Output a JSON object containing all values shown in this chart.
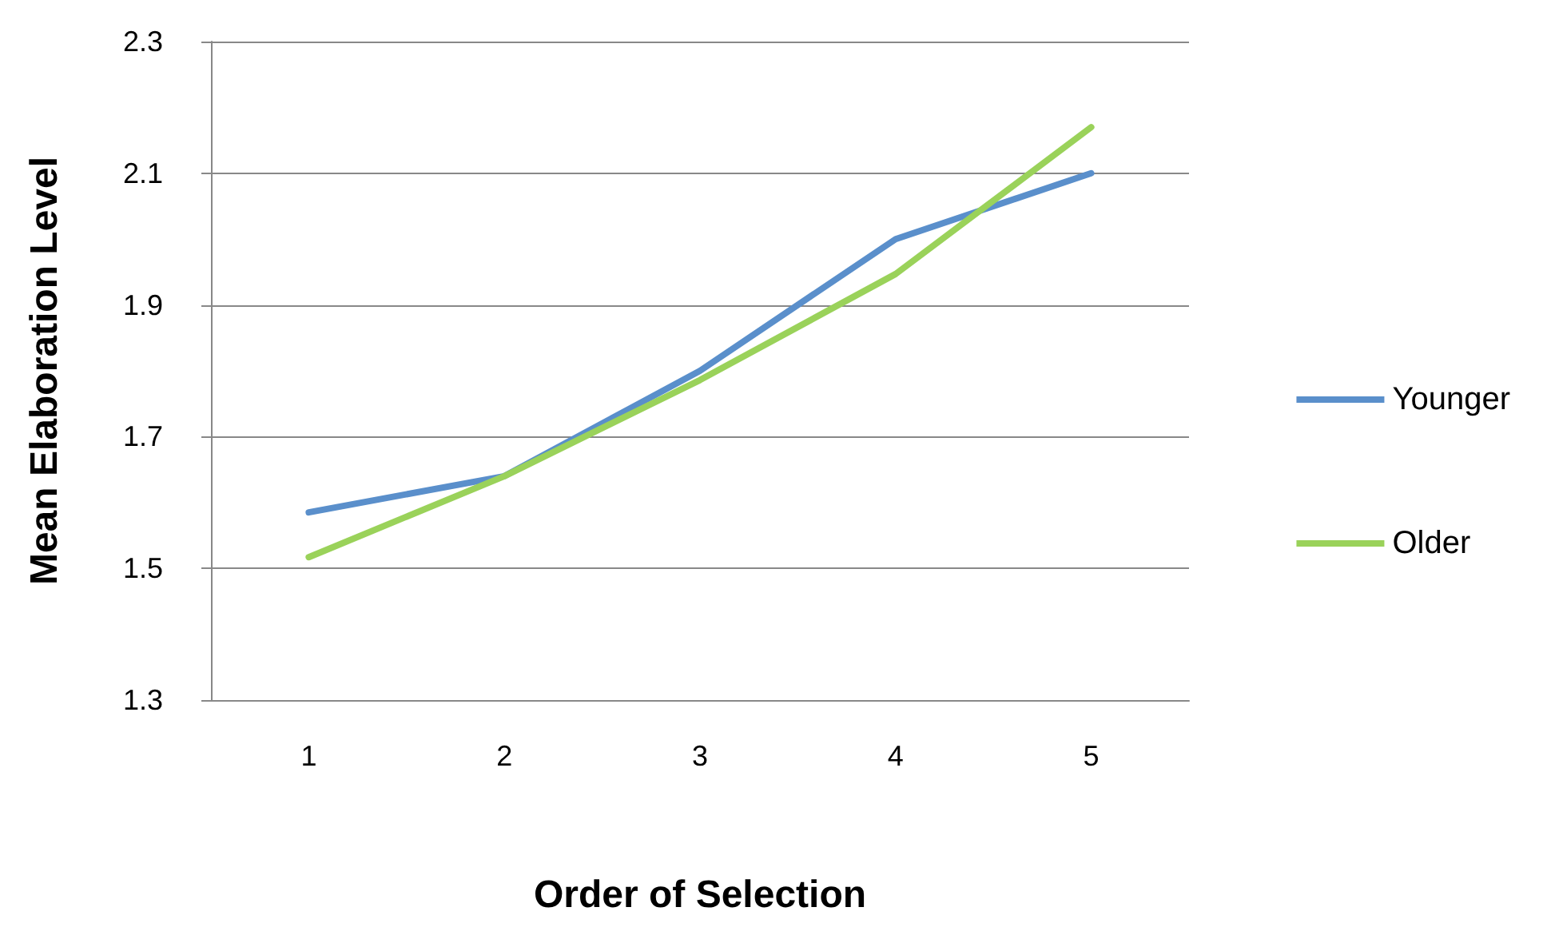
{
  "chart_data": {
    "type": "line",
    "xlabel": "Order of Selection",
    "ylabel": "Mean Elaboration Level",
    "categories": [
      "1",
      "2",
      "3",
      "4",
      "5"
    ],
    "series": [
      {
        "name": "Younger",
        "color": "#5a8fcb",
        "values": [
          1.585,
          1.64,
          1.8,
          2.0,
          2.1
        ]
      },
      {
        "name": "Older",
        "color": "#9ad25a",
        "values": [
          1.517,
          1.64,
          1.786,
          1.947,
          2.17
        ]
      }
    ],
    "ylim": [
      1.3,
      2.3
    ],
    "yticks": [
      1.3,
      1.5,
      1.7,
      1.9,
      2.1,
      2.3
    ],
    "grid": "y",
    "legend": "right",
    "marker": "none",
    "line_style": "solid"
  }
}
